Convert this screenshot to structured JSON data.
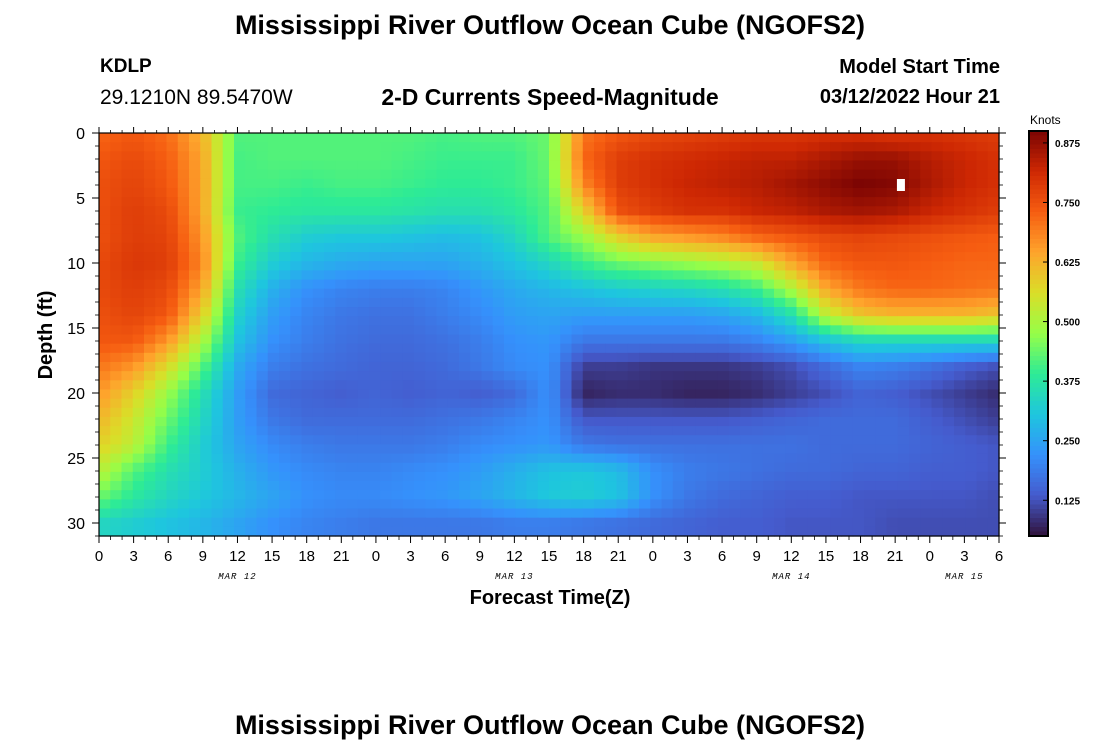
{
  "header": {
    "title": "Mississippi River Outflow Ocean Cube (NGOFS2)",
    "station": "KDLP",
    "coords": "29.1210N  89.5470W",
    "subtitle": "2-D Currents Speed-Magnitude",
    "model_start_label": "Model Start Time",
    "model_start_value": "03/12/2022 Hour 21"
  },
  "footer": {
    "title": "Mississippi River Outflow Ocean Cube (NGOFS2)"
  },
  "chart_data": {
    "type": "heatmap",
    "title": "2-D Currents Speed-Magnitude",
    "xlabel": "Forecast Time(Z)",
    "ylabel": "Depth (ft)",
    "colorbar_label": "Knots",
    "colorbar_ticks": [
      "0.875",
      "0.750",
      "0.625",
      "0.500",
      "0.375",
      "0.250",
      "0.125"
    ],
    "colorbar_values": [
      0.875,
      0.75,
      0.625,
      0.5,
      0.375,
      0.25,
      0.125
    ],
    "colorbar_range": [
      0.05,
      0.9
    ],
    "x_ticks": [
      "0",
      "3",
      "6",
      "9",
      "12",
      "15",
      "18",
      "21",
      "0",
      "3",
      "6",
      "9",
      "12",
      "15",
      "18",
      "21",
      "0",
      "3",
      "6",
      "9",
      "12",
      "15",
      "18",
      "21",
      "0",
      "3",
      "6"
    ],
    "x_range_hours": [
      0,
      78
    ],
    "date_labels": [
      {
        "text": "MAR 12",
        "hour": 12
      },
      {
        "text": "MAR 13",
        "hour": 36
      },
      {
        "text": "MAR 14",
        "hour": 60
      },
      {
        "text": "MAR 15",
        "hour": 75
      }
    ],
    "y_ticks": [
      "0",
      "5",
      "10",
      "15",
      "20",
      "25",
      "30"
    ],
    "y_tick_values": [
      0,
      5,
      10,
      15,
      20,
      25,
      30
    ],
    "y_range": [
      0,
      31
    ],
    "y_inverted": true,
    "grid_hours": [
      0,
      3,
      6,
      9,
      12,
      15,
      18,
      21,
      24,
      27,
      30,
      33,
      36,
      39,
      42,
      45,
      48,
      51,
      54,
      57,
      60,
      63,
      66,
      69,
      72,
      75,
      78
    ],
    "grid_depths": [
      0,
      2,
      4,
      6,
      8,
      10,
      12,
      14,
      16,
      18,
      20,
      22,
      24,
      26,
      28,
      30
    ],
    "values": [
      [
        0.72,
        0.74,
        0.71,
        0.62,
        0.42,
        0.42,
        0.42,
        0.42,
        0.42,
        0.42,
        0.41,
        0.42,
        0.42,
        0.44,
        0.7,
        0.74,
        0.76,
        0.77,
        0.78,
        0.79,
        0.79,
        0.8,
        0.8,
        0.79,
        0.8,
        0.79,
        0.78
      ],
      [
        0.74,
        0.76,
        0.73,
        0.64,
        0.41,
        0.42,
        0.42,
        0.42,
        0.42,
        0.41,
        0.4,
        0.4,
        0.4,
        0.44,
        0.72,
        0.78,
        0.8,
        0.81,
        0.82,
        0.83,
        0.83,
        0.85,
        0.87,
        0.87,
        0.84,
        0.82,
        0.8
      ],
      [
        0.75,
        0.77,
        0.74,
        0.64,
        0.41,
        0.41,
        0.4,
        0.41,
        0.41,
        0.4,
        0.39,
        0.39,
        0.4,
        0.43,
        0.68,
        0.78,
        0.8,
        0.82,
        0.83,
        0.84,
        0.86,
        0.88,
        0.9,
        0.89,
        0.85,
        0.82,
        0.8
      ],
      [
        0.75,
        0.78,
        0.76,
        0.64,
        0.4,
        0.39,
        0.38,
        0.38,
        0.38,
        0.37,
        0.36,
        0.36,
        0.38,
        0.42,
        0.58,
        0.75,
        0.78,
        0.8,
        0.8,
        0.82,
        0.83,
        0.85,
        0.86,
        0.85,
        0.82,
        0.8,
        0.78
      ],
      [
        0.75,
        0.78,
        0.77,
        0.66,
        0.42,
        0.36,
        0.32,
        0.31,
        0.31,
        0.3,
        0.29,
        0.3,
        0.34,
        0.42,
        0.48,
        0.58,
        0.64,
        0.66,
        0.68,
        0.72,
        0.74,
        0.76,
        0.77,
        0.76,
        0.75,
        0.74,
        0.73
      ],
      [
        0.76,
        0.79,
        0.78,
        0.68,
        0.4,
        0.32,
        0.28,
        0.26,
        0.25,
        0.25,
        0.25,
        0.27,
        0.3,
        0.34,
        0.4,
        0.44,
        0.46,
        0.48,
        0.5,
        0.54,
        0.64,
        0.72,
        0.74,
        0.74,
        0.73,
        0.72,
        0.72
      ],
      [
        0.76,
        0.78,
        0.76,
        0.64,
        0.36,
        0.27,
        0.22,
        0.2,
        0.19,
        0.19,
        0.2,
        0.23,
        0.26,
        0.28,
        0.3,
        0.32,
        0.33,
        0.34,
        0.36,
        0.4,
        0.5,
        0.64,
        0.7,
        0.72,
        0.72,
        0.71,
        0.7
      ],
      [
        0.75,
        0.77,
        0.74,
        0.58,
        0.33,
        0.24,
        0.2,
        0.18,
        0.17,
        0.17,
        0.19,
        0.21,
        0.24,
        0.25,
        0.24,
        0.24,
        0.24,
        0.24,
        0.25,
        0.28,
        0.36,
        0.52,
        0.6,
        0.62,
        0.62,
        0.62,
        0.6
      ],
      [
        0.74,
        0.74,
        0.66,
        0.5,
        0.3,
        0.22,
        0.19,
        0.17,
        0.16,
        0.16,
        0.17,
        0.19,
        0.22,
        0.23,
        0.18,
        0.18,
        0.18,
        0.18,
        0.18,
        0.2,
        0.24,
        0.3,
        0.34,
        0.34,
        0.34,
        0.34,
        0.34
      ],
      [
        0.7,
        0.66,
        0.56,
        0.42,
        0.26,
        0.19,
        0.17,
        0.16,
        0.15,
        0.15,
        0.16,
        0.18,
        0.21,
        0.22,
        0.1,
        0.1,
        0.09,
        0.09,
        0.09,
        0.1,
        0.12,
        0.16,
        0.2,
        0.19,
        0.17,
        0.14,
        0.12
      ],
      [
        0.66,
        0.58,
        0.48,
        0.36,
        0.24,
        0.16,
        0.15,
        0.14,
        0.15,
        0.14,
        0.15,
        0.14,
        0.16,
        0.22,
        0.07,
        0.08,
        0.08,
        0.07,
        0.07,
        0.08,
        0.1,
        0.12,
        0.15,
        0.14,
        0.12,
        0.1,
        0.08
      ],
      [
        0.62,
        0.54,
        0.44,
        0.34,
        0.24,
        0.18,
        0.16,
        0.16,
        0.16,
        0.16,
        0.17,
        0.18,
        0.2,
        0.22,
        0.13,
        0.13,
        0.13,
        0.13,
        0.13,
        0.14,
        0.15,
        0.16,
        0.16,
        0.16,
        0.14,
        0.12,
        0.1
      ],
      [
        0.58,
        0.52,
        0.4,
        0.32,
        0.25,
        0.21,
        0.19,
        0.18,
        0.18,
        0.18,
        0.19,
        0.21,
        0.22,
        0.23,
        0.18,
        0.17,
        0.17,
        0.17,
        0.17,
        0.17,
        0.17,
        0.16,
        0.16,
        0.16,
        0.15,
        0.14,
        0.13
      ],
      [
        0.52,
        0.42,
        0.36,
        0.32,
        0.27,
        0.23,
        0.21,
        0.2,
        0.2,
        0.21,
        0.22,
        0.24,
        0.27,
        0.3,
        0.31,
        0.29,
        0.22,
        0.19,
        0.18,
        0.17,
        0.16,
        0.16,
        0.15,
        0.15,
        0.14,
        0.14,
        0.13
      ],
      [
        0.44,
        0.38,
        0.34,
        0.31,
        0.28,
        0.25,
        0.22,
        0.21,
        0.21,
        0.22,
        0.23,
        0.25,
        0.28,
        0.31,
        0.32,
        0.3,
        0.22,
        0.18,
        0.16,
        0.15,
        0.14,
        0.14,
        0.13,
        0.13,
        0.13,
        0.13,
        0.12
      ],
      [
        0.34,
        0.32,
        0.3,
        0.28,
        0.25,
        0.22,
        0.2,
        0.19,
        0.18,
        0.18,
        0.18,
        0.18,
        0.19,
        0.19,
        0.18,
        0.17,
        0.16,
        0.15,
        0.14,
        0.14,
        0.13,
        0.13,
        0.13,
        0.12,
        0.12,
        0.12,
        0.12
      ]
    ],
    "annotation": {
      "type": "marker",
      "hour": 69.5,
      "depth": 4,
      "color": "#ffffff"
    }
  }
}
